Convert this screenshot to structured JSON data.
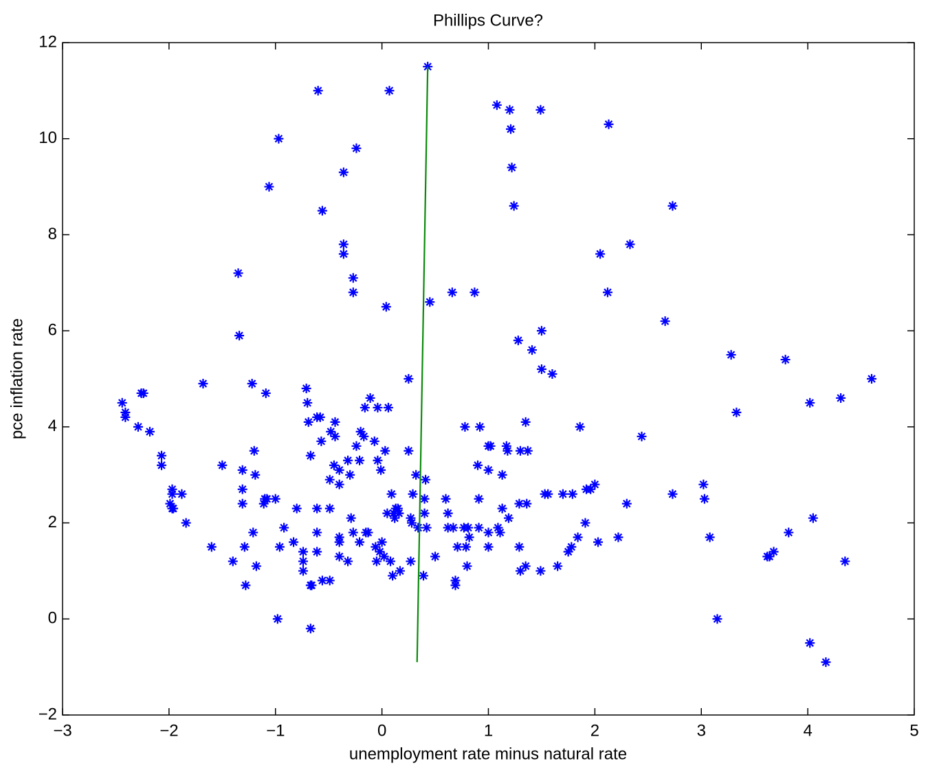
{
  "chart_data": {
    "type": "scatter",
    "title": "Phillips Curve?",
    "xlabel": "unemployment rate minus natural rate",
    "ylabel": "pce inflation rate",
    "xlim": [
      -3,
      5
    ],
    "ylim": [
      -2,
      12
    ],
    "xticks": [
      {
        "value": -3,
        "label": "−3"
      },
      {
        "value": -2,
        "label": "−2"
      },
      {
        "value": -1,
        "label": "−1"
      },
      0,
      1,
      2,
      3,
      4,
      5
    ],
    "yticks": [
      {
        "value": -2,
        "label": "−2"
      },
      0,
      2,
      4,
      6,
      8,
      10,
      12
    ],
    "color": "#0000ff",
    "x": [
      -2.44,
      -2.41,
      -2.41,
      -2.26,
      -2.24,
      -2.29,
      -2.18,
      -2.07,
      -2.07,
      -1.97,
      -1.97,
      -1.99,
      -1.97,
      -1.96,
      -1.88,
      -1.84,
      -1.68,
      -1.6,
      -1.5,
      -1.4,
      -1.35,
      -1.34,
      -1.31,
      -1.31,
      -1.31,
      -1.29,
      -1.28,
      -1.22,
      -1.2,
      -1.19,
      -1.21,
      -1.18,
      -1.09,
      -1.1,
      -1.11,
      -1.08,
      -1.06,
      -1.0,
      -0.97,
      -0.98,
      -0.96,
      -0.92,
      -0.83,
      -0.8,
      -0.74,
      -0.74,
      -0.74,
      -0.71,
      -0.7,
      -0.69,
      -0.67,
      -0.67,
      -0.66,
      -0.67,
      -0.6,
      -0.56,
      -0.61,
      -0.58,
      -0.57,
      -0.61,
      -0.61,
      -0.61,
      -0.56,
      -0.49,
      -0.49,
      -0.49,
      -0.48,
      -0.44,
      -0.44,
      -0.45,
      -0.4,
      -0.4,
      -0.4,
      -0.4,
      -0.4,
      -0.36,
      -0.36,
      -0.36,
      -0.32,
      -0.29,
      -0.3,
      -0.32,
      -0.27,
      -0.27,
      -0.27,
      -0.24,
      -0.24,
      -0.21,
      -0.21,
      -0.2,
      -0.17,
      -0.16,
      -0.15,
      -0.13,
      -0.11,
      -0.07,
      -0.06,
      -0.05,
      -0.04,
      -0.04,
      -0.01,
      0.0,
      -0.02,
      0.02,
      0.03,
      0.04,
      0.05,
      0.06,
      0.07,
      0.08,
      0.09,
      0.1,
      0.11,
      0.12,
      0.13,
      0.15,
      0.16,
      0.17,
      0.25,
      0.25,
      0.27,
      0.27,
      0.28,
      0.29,
      0.32,
      0.34,
      0.39,
      0.4,
      0.4,
      0.41,
      0.42,
      0.43,
      0.45,
      0.5,
      0.6,
      0.62,
      0.62,
      0.66,
      0.67,
      0.69,
      0.69,
      0.71,
      0.77,
      0.78,
      0.79,
      0.8,
      0.81,
      0.82,
      0.87,
      0.9,
      0.91,
      0.91,
      0.92,
      1.0,
      1.02,
      1.0,
      1.0,
      1.0,
      1.08,
      1.09,
      1.11,
      1.13,
      1.13,
      1.17,
      1.18,
      1.19,
      1.2,
      1.21,
      1.22,
      1.24,
      1.28,
      1.29,
      1.29,
      1.3,
      1.3,
      1.35,
      1.35,
      1.36,
      1.37,
      1.41,
      1.49,
      1.49,
      1.5,
      1.5,
      1.53,
      1.56,
      1.6,
      1.65,
      1.7,
      1.75,
      1.79,
      1.78,
      1.84,
      1.86,
      1.91,
      1.92,
      1.96,
      2.0,
      2.03,
      2.05,
      2.12,
      2.13,
      2.22,
      2.3,
      2.33,
      2.44,
      2.66,
      2.73,
      2.73,
      3.02,
      3.03,
      3.08,
      3.15,
      3.28,
      3.33,
      3.62,
      3.64,
      3.68,
      3.79,
      3.82,
      4.02,
      4.02,
      4.05,
      4.17,
      4.31,
      4.35,
      4.6
    ],
    "values": [
      4.5,
      4.3,
      4.2,
      4.7,
      4.7,
      4.0,
      3.9,
      3.4,
      3.2,
      2.7,
      2.6,
      2.4,
      2.3,
      2.3,
      2.6,
      2.0,
      4.9,
      1.5,
      3.2,
      1.2,
      7.2,
      5.9,
      3.1,
      2.7,
      2.4,
      1.5,
      0.7,
      4.9,
      3.5,
      3.0,
      1.8,
      1.1,
      4.7,
      2.5,
      2.4,
      2.5,
      9.0,
      2.5,
      10.0,
      0.0,
      1.5,
      1.9,
      1.6,
      2.3,
      1.4,
      1.2,
      1.0,
      4.8,
      4.5,
      4.1,
      3.4,
      0.7,
      0.7,
      -0.2,
      11.0,
      8.5,
      4.2,
      4.2,
      3.7,
      2.3,
      1.8,
      1.4,
      0.8,
      2.3,
      0.8,
      2.9,
      3.9,
      4.1,
      3.8,
      3.2,
      2.8,
      3.1,
      1.7,
      1.6,
      1.3,
      9.3,
      7.8,
      7.6,
      1.2,
      2.1,
      3.0,
      3.3,
      7.1,
      6.8,
      1.8,
      9.8,
      3.6,
      3.3,
      1.6,
      3.9,
      3.8,
      4.4,
      1.8,
      1.8,
      4.6,
      3.7,
      1.5,
      1.2,
      4.4,
      3.3,
      3.1,
      1.6,
      1.4,
      1.3,
      3.5,
      6.5,
      2.2,
      4.4,
      11.0,
      1.2,
      2.6,
      0.9,
      2.2,
      2.1,
      2.3,
      2.3,
      2.2,
      1.0,
      5.0,
      3.5,
      1.2,
      2.1,
      2.0,
      2.6,
      3.0,
      1.9,
      0.9,
      2.2,
      2.5,
      2.9,
      1.9,
      11.5,
      6.6,
      1.3,
      2.5,
      2.2,
      1.9,
      6.8,
      1.9,
      0.8,
      0.7,
      1.5,
      1.9,
      4.0,
      1.5,
      1.1,
      1.9,
      1.7,
      6.8,
      3.2,
      2.5,
      1.9,
      4.0,
      3.6,
      3.6,
      3.1,
      1.8,
      1.5,
      10.7,
      1.9,
      1.8,
      2.3,
      3.0,
      3.6,
      3.5,
      2.1,
      10.6,
      10.2,
      9.4,
      8.6,
      5.8,
      2.4,
      1.5,
      1.0,
      3.5,
      4.1,
      1.1,
      2.4,
      3.5,
      5.6,
      10.6,
      1.0,
      6.0,
      5.2,
      2.6,
      2.6,
      5.1,
      1.1,
      2.6,
      1.4,
      2.6,
      1.5,
      1.7,
      4.0,
      2.0,
      2.7,
      2.7,
      2.8,
      1.6,
      7.6,
      6.8,
      10.3,
      1.7,
      2.4,
      7.8,
      3.8,
      6.2,
      2.6,
      8.6,
      2.8,
      2.5,
      1.7,
      0.0,
      5.5,
      4.3,
      1.3,
      1.3,
      1.4,
      5.4,
      1.8,
      4.5,
      -0.5,
      2.1,
      -0.9,
      4.6,
      1.2,
      5.0
    ],
    "fit": {
      "color": "#0a8a0a",
      "x": [
        0.33,
        0.43
      ],
      "values": [
        -0.9,
        11.5
      ]
    }
  }
}
